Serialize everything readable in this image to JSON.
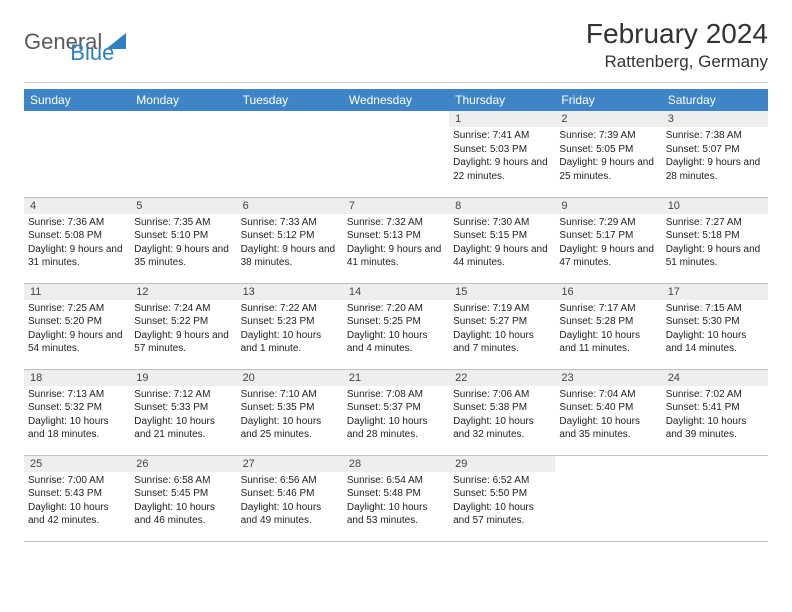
{
  "brand": {
    "part1": "General",
    "part2": "Blue"
  },
  "title": "February 2024",
  "location": "Rattenberg, Germany",
  "colors": {
    "header_bg": "#3d85c6",
    "header_fg": "#ffffff",
    "daynum_bg": "#eeeeee",
    "border": "#c0c0c0",
    "logo_gray": "#5a5a5a",
    "logo_blue": "#2f7fc2"
  },
  "weekdays": [
    "Sunday",
    "Monday",
    "Tuesday",
    "Wednesday",
    "Thursday",
    "Friday",
    "Saturday"
  ],
  "weeks": [
    [
      {
        "n": "",
        "sr": "",
        "ss": "",
        "dl": ""
      },
      {
        "n": "",
        "sr": "",
        "ss": "",
        "dl": ""
      },
      {
        "n": "",
        "sr": "",
        "ss": "",
        "dl": ""
      },
      {
        "n": "",
        "sr": "",
        "ss": "",
        "dl": ""
      },
      {
        "n": "1",
        "sr": "Sunrise: 7:41 AM",
        "ss": "Sunset: 5:03 PM",
        "dl": "Daylight: 9 hours and 22 minutes."
      },
      {
        "n": "2",
        "sr": "Sunrise: 7:39 AM",
        "ss": "Sunset: 5:05 PM",
        "dl": "Daylight: 9 hours and 25 minutes."
      },
      {
        "n": "3",
        "sr": "Sunrise: 7:38 AM",
        "ss": "Sunset: 5:07 PM",
        "dl": "Daylight: 9 hours and 28 minutes."
      }
    ],
    [
      {
        "n": "4",
        "sr": "Sunrise: 7:36 AM",
        "ss": "Sunset: 5:08 PM",
        "dl": "Daylight: 9 hours and 31 minutes."
      },
      {
        "n": "5",
        "sr": "Sunrise: 7:35 AM",
        "ss": "Sunset: 5:10 PM",
        "dl": "Daylight: 9 hours and 35 minutes."
      },
      {
        "n": "6",
        "sr": "Sunrise: 7:33 AM",
        "ss": "Sunset: 5:12 PM",
        "dl": "Daylight: 9 hours and 38 minutes."
      },
      {
        "n": "7",
        "sr": "Sunrise: 7:32 AM",
        "ss": "Sunset: 5:13 PM",
        "dl": "Daylight: 9 hours and 41 minutes."
      },
      {
        "n": "8",
        "sr": "Sunrise: 7:30 AM",
        "ss": "Sunset: 5:15 PM",
        "dl": "Daylight: 9 hours and 44 minutes."
      },
      {
        "n": "9",
        "sr": "Sunrise: 7:29 AM",
        "ss": "Sunset: 5:17 PM",
        "dl": "Daylight: 9 hours and 47 minutes."
      },
      {
        "n": "10",
        "sr": "Sunrise: 7:27 AM",
        "ss": "Sunset: 5:18 PM",
        "dl": "Daylight: 9 hours and 51 minutes."
      }
    ],
    [
      {
        "n": "11",
        "sr": "Sunrise: 7:25 AM",
        "ss": "Sunset: 5:20 PM",
        "dl": "Daylight: 9 hours and 54 minutes."
      },
      {
        "n": "12",
        "sr": "Sunrise: 7:24 AM",
        "ss": "Sunset: 5:22 PM",
        "dl": "Daylight: 9 hours and 57 minutes."
      },
      {
        "n": "13",
        "sr": "Sunrise: 7:22 AM",
        "ss": "Sunset: 5:23 PM",
        "dl": "Daylight: 10 hours and 1 minute."
      },
      {
        "n": "14",
        "sr": "Sunrise: 7:20 AM",
        "ss": "Sunset: 5:25 PM",
        "dl": "Daylight: 10 hours and 4 minutes."
      },
      {
        "n": "15",
        "sr": "Sunrise: 7:19 AM",
        "ss": "Sunset: 5:27 PM",
        "dl": "Daylight: 10 hours and 7 minutes."
      },
      {
        "n": "16",
        "sr": "Sunrise: 7:17 AM",
        "ss": "Sunset: 5:28 PM",
        "dl": "Daylight: 10 hours and 11 minutes."
      },
      {
        "n": "17",
        "sr": "Sunrise: 7:15 AM",
        "ss": "Sunset: 5:30 PM",
        "dl": "Daylight: 10 hours and 14 minutes."
      }
    ],
    [
      {
        "n": "18",
        "sr": "Sunrise: 7:13 AM",
        "ss": "Sunset: 5:32 PM",
        "dl": "Daylight: 10 hours and 18 minutes."
      },
      {
        "n": "19",
        "sr": "Sunrise: 7:12 AM",
        "ss": "Sunset: 5:33 PM",
        "dl": "Daylight: 10 hours and 21 minutes."
      },
      {
        "n": "20",
        "sr": "Sunrise: 7:10 AM",
        "ss": "Sunset: 5:35 PM",
        "dl": "Daylight: 10 hours and 25 minutes."
      },
      {
        "n": "21",
        "sr": "Sunrise: 7:08 AM",
        "ss": "Sunset: 5:37 PM",
        "dl": "Daylight: 10 hours and 28 minutes."
      },
      {
        "n": "22",
        "sr": "Sunrise: 7:06 AM",
        "ss": "Sunset: 5:38 PM",
        "dl": "Daylight: 10 hours and 32 minutes."
      },
      {
        "n": "23",
        "sr": "Sunrise: 7:04 AM",
        "ss": "Sunset: 5:40 PM",
        "dl": "Daylight: 10 hours and 35 minutes."
      },
      {
        "n": "24",
        "sr": "Sunrise: 7:02 AM",
        "ss": "Sunset: 5:41 PM",
        "dl": "Daylight: 10 hours and 39 minutes."
      }
    ],
    [
      {
        "n": "25",
        "sr": "Sunrise: 7:00 AM",
        "ss": "Sunset: 5:43 PM",
        "dl": "Daylight: 10 hours and 42 minutes."
      },
      {
        "n": "26",
        "sr": "Sunrise: 6:58 AM",
        "ss": "Sunset: 5:45 PM",
        "dl": "Daylight: 10 hours and 46 minutes."
      },
      {
        "n": "27",
        "sr": "Sunrise: 6:56 AM",
        "ss": "Sunset: 5:46 PM",
        "dl": "Daylight: 10 hours and 49 minutes."
      },
      {
        "n": "28",
        "sr": "Sunrise: 6:54 AM",
        "ss": "Sunset: 5:48 PM",
        "dl": "Daylight: 10 hours and 53 minutes."
      },
      {
        "n": "29",
        "sr": "Sunrise: 6:52 AM",
        "ss": "Sunset: 5:50 PM",
        "dl": "Daylight: 10 hours and 57 minutes."
      },
      {
        "n": "",
        "sr": "",
        "ss": "",
        "dl": ""
      },
      {
        "n": "",
        "sr": "",
        "ss": "",
        "dl": ""
      }
    ]
  ]
}
